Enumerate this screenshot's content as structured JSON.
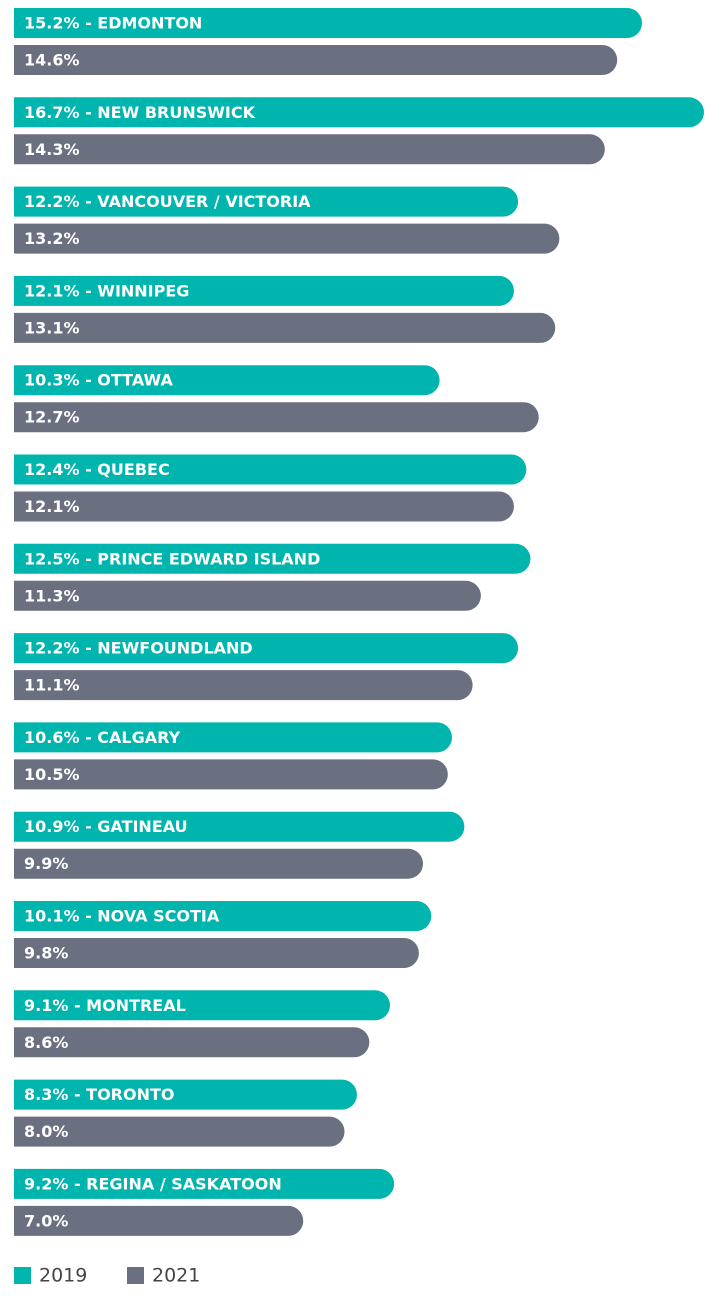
{
  "chart_data": {
    "type": "bar",
    "orientation": "horizontal",
    "series": [
      {
        "name": "2019",
        "color": "#00b5ad",
        "values": [
          15.2,
          16.7,
          12.2,
          12.1,
          10.3,
          12.4,
          12.5,
          12.2,
          10.6,
          10.9,
          10.1,
          9.1,
          8.3,
          9.2
        ],
        "value_labels": [
          "15.2% - EDMONTON",
          "16.7% - NEW BRUNSWICK",
          "12.2% - VANCOUVER / VICTORIA",
          "12.1% - WINNIPEG",
          "10.3% - OTTAWA",
          "12.4% - QUEBEC",
          "12.5% - PRINCE EDWARD ISLAND",
          "12.2% - NEWFOUNDLAND",
          "10.6% - CALGARY",
          "10.9% - GATINEAU",
          "10.1% - NOVA SCOTIA",
          "9.1% - MONTREAL",
          "8.3% - TORONTO",
          "9.2% - REGINA / SASKATOON"
        ]
      },
      {
        "name": "2021",
        "color": "#6b7080",
        "values": [
          14.6,
          14.3,
          13.2,
          13.1,
          12.7,
          12.1,
          11.3,
          11.1,
          10.5,
          9.9,
          9.8,
          8.6,
          8.0,
          7.0
        ],
        "value_labels": [
          "14.6%",
          "14.3%",
          "13.2%",
          "13.1%",
          "12.7%",
          "12.1%",
          "11.3%",
          "11.1%",
          "10.5%",
          "9.9%",
          "9.8%",
          "8.6%",
          "8.0%",
          "7.0%"
        ]
      }
    ],
    "legend": "bottom-left"
  }
}
